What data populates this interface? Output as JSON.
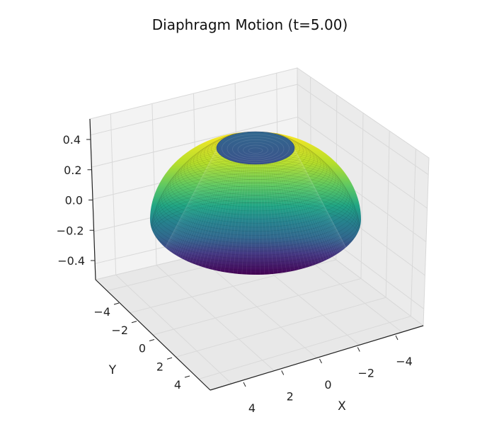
{
  "chart_data": {
    "type": "surface3d",
    "title": "Diaphragm Motion (t=5.00)",
    "xlabel": "X",
    "ylabel": "Y",
    "zlabel": "",
    "x_ticks": [
      4,
      2,
      0,
      -2,
      -4
    ],
    "y_ticks": [
      -4,
      -2,
      0,
      2,
      4
    ],
    "z_ticks": [
      0.4,
      0.2,
      0.0,
      -0.2,
      -0.4
    ],
    "z_tick_labels": [
      "0.4",
      "0.2",
      "0.0",
      "−0.2",
      "−0.4"
    ],
    "x_tick_labels": [
      "4",
      "2",
      "0",
      "−2",
      "−4"
    ],
    "y_tick_labels": [
      "−4",
      "−2",
      "0",
      "2",
      "4"
    ],
    "colormap": "viridis",
    "colormap_colors": [
      "#440154",
      "#3b528b",
      "#21908c",
      "#5dc863",
      "#fde725"
    ],
    "surface": {
      "shape": "dome",
      "radius": 5,
      "top_cap_color": "#3b5b8b"
    },
    "pane_color": "#f2f2f2",
    "grid": true
  }
}
